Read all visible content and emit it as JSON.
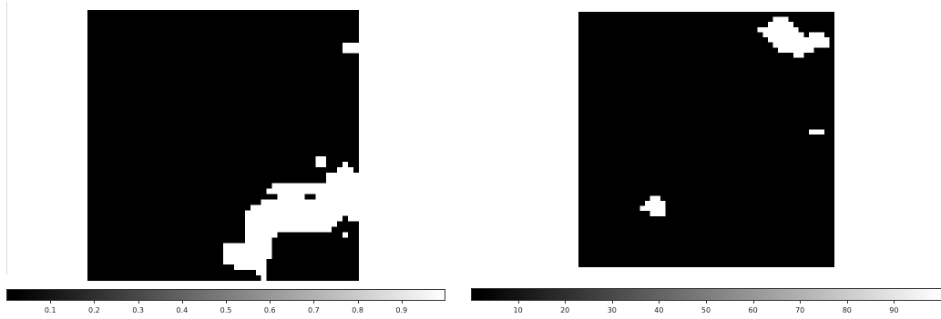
{
  "chart_data": [
    {
      "type": "heatmap",
      "title": "",
      "xlabel": "",
      "ylabel": "",
      "colormap": "gray",
      "value_range": [
        0,
        1
      ],
      "grid": false,
      "colorbar_ticks": [
        "0.1",
        "0.2",
        "0.3",
        "0.4",
        "0.5",
        "0.6",
        "0.7",
        "0.8",
        "0.9"
      ],
      "tick_values": [
        0.1,
        0.2,
        0.3,
        0.4,
        0.5,
        0.6,
        0.7,
        0.8,
        0.9
      ],
      "grid_size": [
        50,
        50
      ],
      "regions": [
        {
          "row": 6,
          "col_start": 47,
          "col_end": 49
        },
        {
          "row": 7,
          "col_start": 47,
          "col_end": 49
        },
        {
          "row": 27,
          "col_start": 42,
          "col_end": 43
        },
        {
          "row": 28,
          "col_start": 42,
          "col_end": 43
        },
        {
          "row": 28,
          "col_start": 47,
          "col_end": 47
        },
        {
          "row": 29,
          "col_start": 46,
          "col_end": 48
        },
        {
          "row": 30,
          "col_start": 44,
          "col_end": 49
        },
        {
          "row": 31,
          "col_start": 44,
          "col_end": 49
        },
        {
          "row": 32,
          "col_start": 34,
          "col_end": 49
        },
        {
          "row": 33,
          "col_start": 33,
          "col_end": 49
        },
        {
          "row": 34,
          "col_start": 35,
          "col_end": 39
        },
        {
          "row": 34,
          "col_start": 42,
          "col_end": 49
        },
        {
          "row": 35,
          "col_start": 32,
          "col_end": 49
        },
        {
          "row": 36,
          "col_start": 30,
          "col_end": 49
        },
        {
          "row": 37,
          "col_start": 29,
          "col_end": 49
        },
        {
          "row": 38,
          "col_start": 29,
          "col_end": 46
        },
        {
          "row": 38,
          "col_start": 48,
          "col_end": 49
        },
        {
          "row": 39,
          "col_start": 29,
          "col_end": 45
        },
        {
          "row": 40,
          "col_start": 29,
          "col_end": 44
        },
        {
          "row": 41,
          "col_start": 29,
          "col_end": 34
        },
        {
          "row": 41,
          "col_start": 47,
          "col_end": 47
        },
        {
          "row": 42,
          "col_start": 29,
          "col_end": 33
        },
        {
          "row": 43,
          "col_start": 25,
          "col_end": 33
        },
        {
          "row": 44,
          "col_start": 25,
          "col_end": 33
        },
        {
          "row": 45,
          "col_start": 25,
          "col_end": 33
        },
        {
          "row": 46,
          "col_start": 25,
          "col_end": 32
        },
        {
          "row": 47,
          "col_start": 27,
          "col_end": 32
        },
        {
          "row": 48,
          "col_start": 31,
          "col_end": 32
        },
        {
          "row": 49,
          "col_start": 32,
          "col_end": 32
        }
      ]
    },
    {
      "type": "heatmap",
      "title": "",
      "xlabel": "",
      "ylabel": "",
      "colormap": "gray",
      "value_range": [
        0,
        100
      ],
      "grid": false,
      "colorbar_ticks": [
        "10",
        "20",
        "30",
        "40",
        "50",
        "60",
        "70",
        "80",
        "90"
      ],
      "tick_values": [
        10,
        20,
        30,
        40,
        50,
        60,
        70,
        80,
        90
      ],
      "grid_size": [
        50,
        50
      ],
      "regions": [
        {
          "row": 1,
          "col_start": 38,
          "col_end": 40
        },
        {
          "row": 2,
          "col_start": 37,
          "col_end": 41
        },
        {
          "row": 3,
          "col_start": 35,
          "col_end": 42
        },
        {
          "row": 4,
          "col_start": 36,
          "col_end": 43
        },
        {
          "row": 4,
          "col_start": 45,
          "col_end": 47
        },
        {
          "row": 5,
          "col_start": 37,
          "col_end": 48
        },
        {
          "row": 6,
          "col_start": 38,
          "col_end": 48
        },
        {
          "row": 7,
          "col_start": 39,
          "col_end": 45
        },
        {
          "row": 8,
          "col_start": 42,
          "col_end": 43
        },
        {
          "row": 23,
          "col_start": 45,
          "col_end": 47
        },
        {
          "row": 36,
          "col_start": 14,
          "col_end": 15
        },
        {
          "row": 37,
          "col_start": 13,
          "col_end": 16
        },
        {
          "row": 38,
          "col_start": 12,
          "col_end": 16
        },
        {
          "row": 39,
          "col_start": 14,
          "col_end": 16
        }
      ]
    }
  ]
}
